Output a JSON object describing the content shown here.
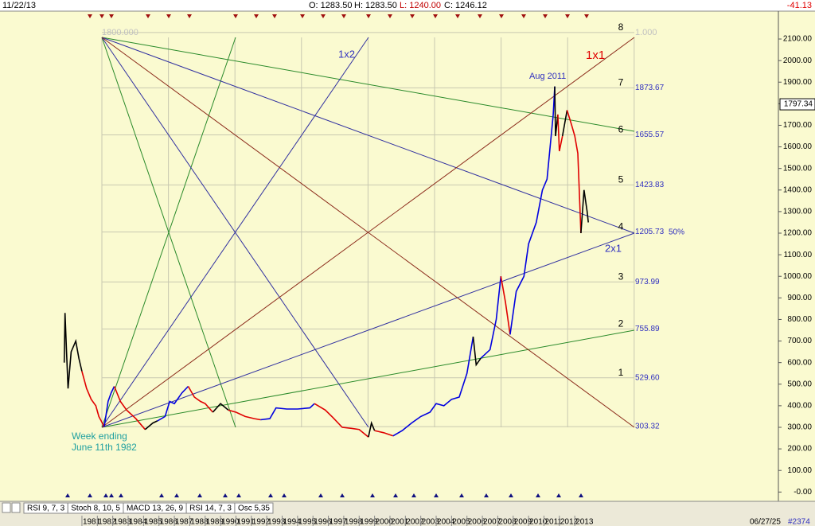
{
  "header": {
    "date": "11/22/13",
    "ohlc": [
      "O: 1283.50",
      "H: 1283.50",
      "L: 1240.00",
      "C: 1246.12"
    ],
    "change": "-41.13"
  },
  "toolbar": {
    "tabs": [
      "RSI 9, 7, 3",
      "Stoch 8, 10, 5",
      "MACD 13, 26, 9",
      "RSI 14, 7, 3",
      "Osc 5,35"
    ],
    "date": "06/27/25",
    "id": "#2374"
  },
  "chart_data": {
    "type": "line",
    "xlim": [
      1975.68,
      2026.22
    ],
    "ylim": [
      -35.7,
      2225.5
    ],
    "xticks": [
      1981,
      1982,
      1983,
      1984,
      1985,
      1986,
      1987,
      1988,
      1989,
      1990,
      1991,
      1992,
      1993,
      1994,
      1995,
      1996,
      1997,
      1998,
      1999,
      2000,
      2001,
      2002,
      2003,
      2004,
      2005,
      2006,
      2007,
      2008,
      2009,
      2010,
      2011,
      2012,
      2013
    ],
    "yticks": [
      {
        "value": 0,
        "label": "-0.00"
      },
      {
        "value": 100,
        "label": "100.00"
      },
      {
        "value": 200,
        "label": "200.00"
      },
      {
        "value": 300,
        "label": "300.00"
      },
      {
        "value": 400,
        "label": "400.00"
      },
      {
        "value": 500,
        "label": "500.00"
      },
      {
        "value": 600,
        "label": "600.00"
      },
      {
        "value": 700,
        "label": "700.00"
      },
      {
        "value": 800,
        "label": "800.00"
      },
      {
        "value": 900,
        "label": "900.00"
      },
      {
        "value": 1000,
        "label": "1000.00"
      },
      {
        "value": 1100,
        "label": "1100.00"
      },
      {
        "value": 1200,
        "label": "1200.00"
      },
      {
        "value": 1300,
        "label": "1300.00"
      },
      {
        "value": 1400,
        "label": "1400.00"
      },
      {
        "value": 1500,
        "label": "1500.00"
      },
      {
        "value": 1600,
        "label": "1600.00"
      },
      {
        "value": 1700,
        "label": "1700.00"
      },
      {
        "value": 1800,
        "label": "1800.00"
      },
      {
        "value": 1900,
        "label": "1900.00"
      },
      {
        "value": 2000,
        "label": "2000.00"
      },
      {
        "value": 2100,
        "label": "2100.00"
      }
    ],
    "last_price": {
      "value": 1797.34,
      "label": "1797.34"
    },
    "levels": [
      {
        "count": 1,
        "value": 529.6,
        "label": "529.60"
      },
      {
        "count": 2,
        "value": 755.89,
        "label": "755.89"
      },
      {
        "count": 3,
        "value": 973.99,
        "label": "973.99"
      },
      {
        "count": 4,
        "value": 1205.73,
        "label": "1205.73"
      },
      {
        "count": 5,
        "value": 1423.83,
        "label": "1423.83"
      },
      {
        "count": 6,
        "value": 1655.57,
        "label": "1655.57"
      },
      {
        "count": 7,
        "value": 1873.67,
        "label": "1873.67"
      },
      {
        "count": 8,
        "value": 2130
      },
      {
        "value": 303.32,
        "label": "303.32"
      }
    ],
    "annotations": [
      "1x2",
      "1x1",
      "Aug 2011",
      "2x1",
      "Week ending",
      "June 11th 1982",
      "50%",
      "1.000",
      "1800.000"
    ],
    "segments": [
      {
        "color": "#000000",
        "x": [
          1979.85,
          1979.9,
          1980.0,
          1980.1,
          1980.3,
          1980.6,
          1980.8,
          1981.0
        ],
        "values": [
          600,
          830,
          650,
          480,
          650,
          700,
          620,
          560
        ]
      },
      {
        "color": "#e00000",
        "x": [
          1981.0,
          1981.3,
          1981.6,
          1981.9,
          1982.1,
          1982.45
        ],
        "values": [
          560,
          480,
          430,
          400,
          350,
          303
        ]
      },
      {
        "color": "#0000e0",
        "x": [
          1982.45,
          1982.7,
          1982.9,
          1983.1
        ],
        "values": [
          303,
          420,
          460,
          490
        ]
      },
      {
        "color": "#e00000",
        "x": [
          1983.1,
          1983.5,
          1983.9,
          1984.5,
          1985.1
        ],
        "values": [
          490,
          420,
          380,
          340,
          290
        ]
      },
      {
        "color": "#000000",
        "x": [
          1985.1,
          1985.6,
          1985.9
        ],
        "values": [
          290,
          320,
          330
        ]
      },
      {
        "color": "#0000e0",
        "x": [
          1985.9,
          1986.4,
          1986.7,
          1987.0,
          1987.5,
          1987.9
        ],
        "values": [
          330,
          350,
          420,
          410,
          460,
          490
        ]
      },
      {
        "color": "#e00000",
        "x": [
          1987.9,
          1988.3,
          1988.7,
          1989.0,
          1989.5
        ],
        "values": [
          490,
          440,
          420,
          410,
          370
        ]
      },
      {
        "color": "#000000",
        "x": [
          1989.5,
          1990.0,
          1990.5
        ],
        "values": [
          370,
          410,
          380
        ]
      },
      {
        "color": "#e00000",
        "x": [
          1990.5,
          1991.0,
          1991.6,
          1992.2,
          1992.6
        ],
        "values": [
          380,
          370,
          350,
          340,
          335
        ]
      },
      {
        "color": "#0000e0",
        "x": [
          1992.6,
          1993.2,
          1993.6,
          1994.3,
          1995.0,
          1995.8,
          1996.1
        ],
        "values": [
          335,
          340,
          390,
          385,
          385,
          390,
          410
        ]
      },
      {
        "color": "#e00000",
        "x": [
          1996.1,
          1996.8,
          1997.3,
          1997.9,
          1998.5,
          1999.0,
          1999.6
        ],
        "values": [
          410,
          380,
          345,
          300,
          295,
          290,
          255
        ]
      },
      {
        "color": "#000000",
        "x": [
          1999.6,
          1999.8,
          2000.0
        ],
        "values": [
          255,
          320,
          285
        ]
      },
      {
        "color": "#e00000",
        "x": [
          2000.0,
          2000.6,
          2001.2
        ],
        "values": [
          285,
          275,
          260
        ]
      },
      {
        "color": "#0000e0",
        "x": [
          2001.2,
          2001.8,
          2002.4,
          2003.0,
          2003.6,
          2004.0,
          2004.5,
          2005.0,
          2005.5,
          2006.0,
          2006.4
        ],
        "values": [
          260,
          285,
          320,
          350,
          370,
          410,
          400,
          430,
          440,
          550,
          720
        ]
      },
      {
        "color": "#000000",
        "x": [
          2006.4,
          2006.6,
          2006.9
        ],
        "values": [
          720,
          590,
          620
        ]
      },
      {
        "color": "#0000e0",
        "x": [
          2006.9,
          2007.5,
          2007.9,
          2008.2
        ],
        "values": [
          620,
          660,
          800,
          1000
        ]
      },
      {
        "color": "#e00000",
        "x": [
          2008.2,
          2008.5,
          2008.8
        ],
        "values": [
          1000,
          880,
          730
        ]
      },
      {
        "color": "#0000e0",
        "x": [
          2008.8,
          2009.2,
          2009.7,
          2010.0,
          2010.5,
          2010.9,
          2011.2,
          2011.6,
          2011.7
        ],
        "values": [
          730,
          930,
          1000,
          1150,
          1250,
          1400,
          1450,
          1750,
          1880
        ]
      },
      {
        "color": "#000000",
        "x": [
          2011.7,
          2011.75,
          2011.9
        ],
        "values": [
          1880,
          1650,
          1750
        ]
      },
      {
        "color": "#e00000",
        "x": [
          2011.9,
          2012.0,
          2012.2
        ],
        "values": [
          1750,
          1580,
          1650
        ]
      },
      {
        "color": "#000000",
        "x": [
          2012.2,
          2012.5
        ],
        "values": [
          1650,
          1770
        ]
      },
      {
        "color": "#e00000",
        "x": [
          2012.5,
          2012.8,
          2013.0,
          2013.2,
          2013.4
        ],
        "values": [
          1770,
          1700,
          1650,
          1570,
          1200
        ]
      },
      {
        "color": "#000000",
        "x": [
          2013.4,
          2013.6,
          2013.8,
          2013.88
        ],
        "values": [
          1200,
          1400,
          1300,
          1250
        ]
      }
    ]
  }
}
